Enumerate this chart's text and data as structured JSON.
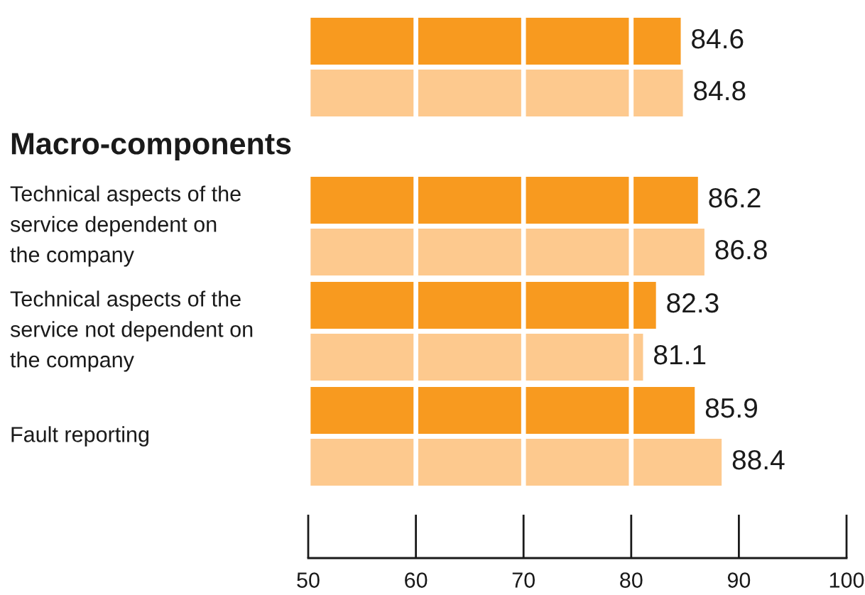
{
  "chart_data": [
    {
      "type": "bar",
      "orientation": "horizontal",
      "categories": [
        null
      ],
      "series": [
        {
          "color": "#f89a1f",
          "values": [
            84.6
          ]
        },
        {
          "color": "#fdc98e",
          "values": [
            84.8
          ]
        }
      ],
      "xlim": [
        50,
        100
      ],
      "xticks": [
        50,
        60,
        70,
        80,
        90,
        100
      ],
      "grid": "x",
      "data_labels": true,
      "tick_labels": false
    },
    {
      "type": "bar",
      "orientation": "horizontal",
      "title": "Macro-components",
      "categories": [
        "Technical aspects of the\nservice dependent on\nthe company",
        "Technical aspects of the\nservice not dependent on\nthe company",
        "Fault reporting"
      ],
      "series": [
        {
          "color": "#f89a1f",
          "values": [
            86.2,
            82.3,
            85.9
          ]
        },
        {
          "color": "#fdc98e",
          "values": [
            86.8,
            81.1,
            88.4
          ]
        }
      ],
      "xlim": [
        50,
        100
      ],
      "xticks": [
        50,
        60,
        70,
        80,
        90,
        100
      ],
      "grid": "x",
      "data_labels": true
    }
  ]
}
